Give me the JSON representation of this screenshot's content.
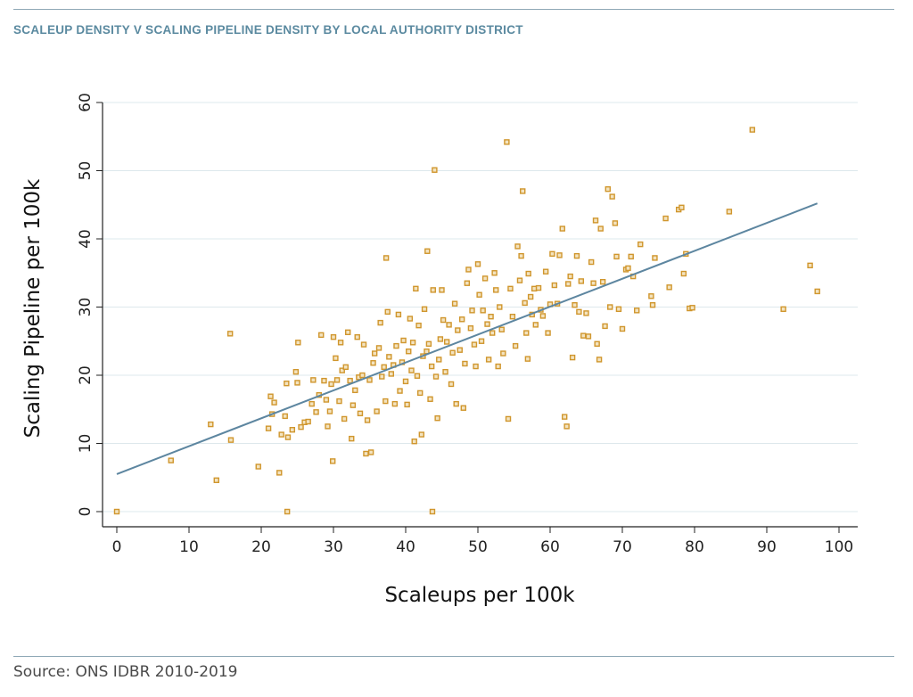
{
  "header": {
    "title": "SCALEUP DENSITY V SCALING PIPELINE DENSITY BY LOCAL AUTHORITY DISTRICT"
  },
  "footer": {
    "source": "Source: ONS IDBR 2010-2019"
  },
  "colors": {
    "rule": "#8fa8b6",
    "heading": "#5b8aa0",
    "points": "#d0962d",
    "fit_line": "#5d86a0",
    "grid": "#dde8ec"
  },
  "chart_data": {
    "type": "scatter",
    "title": "",
    "xlabel": "Scaleups per 100k",
    "ylabel": "Scaling Pipeline per 100k",
    "xlim": [
      0,
      100
    ],
    "ylim": [
      0,
      60
    ],
    "x_ticks": [
      0,
      10,
      20,
      30,
      40,
      50,
      60,
      70,
      80,
      90,
      100
    ],
    "y_ticks": [
      0,
      10,
      20,
      30,
      40,
      50,
      60
    ],
    "grid": "horizontal",
    "fit_line": {
      "x": [
        0,
        97
      ],
      "y": [
        5.5,
        45.2
      ]
    },
    "points": [
      [
        0,
        0
      ],
      [
        7.5,
        7.5
      ],
      [
        13,
        12.8
      ],
      [
        13.8,
        4.6
      ],
      [
        15.7,
        26.1
      ],
      [
        15.8,
        10.5
      ],
      [
        19.6,
        6.6
      ],
      [
        21,
        12.2
      ],
      [
        21.3,
        16.9
      ],
      [
        21.5,
        14.3
      ],
      [
        21.8,
        16
      ],
      [
        22.5,
        5.7
      ],
      [
        22.8,
        11.3
      ],
      [
        23.3,
        14
      ],
      [
        23.5,
        18.8
      ],
      [
        23.6,
        0
      ],
      [
        23.7,
        10.9
      ],
      [
        24.3,
        12
      ],
      [
        24.8,
        20.5
      ],
      [
        25.1,
        24.8
      ],
      [
        25,
        18.9
      ],
      [
        25.5,
        12.4
      ],
      [
        26,
        13.1
      ],
      [
        26.5,
        13.2
      ],
      [
        27,
        15.8
      ],
      [
        27.2,
        19.3
      ],
      [
        27.6,
        14.6
      ],
      [
        28,
        17.1
      ],
      [
        28.3,
        25.9
      ],
      [
        28.7,
        19.2
      ],
      [
        29,
        16.4
      ],
      [
        29.2,
        12.5
      ],
      [
        29.5,
        14.7
      ],
      [
        29.7,
        18.7
      ],
      [
        30,
        25.6
      ],
      [
        29.9,
        7.4
      ],
      [
        30.3,
        22.5
      ],
      [
        30.5,
        19.3
      ],
      [
        30.8,
        16.2
      ],
      [
        31,
        24.8
      ],
      [
        31.2,
        20.7
      ],
      [
        31.5,
        13.6
      ],
      [
        31.7,
        21.2
      ],
      [
        32,
        26.3
      ],
      [
        32.3,
        19.2
      ],
      [
        32.5,
        10.7
      ],
      [
        32.7,
        15.6
      ],
      [
        33,
        17.8
      ],
      [
        33.3,
        25.6
      ],
      [
        33.5,
        19.7
      ],
      [
        33.7,
        14.4
      ],
      [
        34,
        20
      ],
      [
        34.2,
        24.5
      ],
      [
        34.5,
        8.5
      ],
      [
        34.7,
        13.4
      ],
      [
        35,
        19.3
      ],
      [
        35.2,
        8.7
      ],
      [
        35.5,
        21.8
      ],
      [
        35.7,
        23.2
      ],
      [
        36,
        14.7
      ],
      [
        36.3,
        24
      ],
      [
        36.5,
        27.7
      ],
      [
        36.7,
        19.8
      ],
      [
        37,
        21.2
      ],
      [
        37.2,
        16.2
      ],
      [
        37.5,
        29.3
      ],
      [
        37.7,
        22.7
      ],
      [
        37.3,
        37.2
      ],
      [
        38,
        20.2
      ],
      [
        38.3,
        21.5
      ],
      [
        38.5,
        15.8
      ],
      [
        38.7,
        24.3
      ],
      [
        39,
        28.9
      ],
      [
        39.2,
        17.7
      ],
      [
        39.5,
        21.9
      ],
      [
        39.7,
        25.1
      ],
      [
        40,
        19.1
      ],
      [
        40.2,
        15.7
      ],
      [
        40.4,
        23.5
      ],
      [
        40.6,
        28.3
      ],
      [
        40.8,
        20.7
      ],
      [
        41,
        24.8
      ],
      [
        41.2,
        10.3
      ],
      [
        41.4,
        32.7
      ],
      [
        41.6,
        19.9
      ],
      [
        41.8,
        27.3
      ],
      [
        42,
        17.4
      ],
      [
        42.2,
        11.3
      ],
      [
        42.4,
        22.8
      ],
      [
        42.6,
        29.7
      ],
      [
        42.9,
        23.5
      ],
      [
        43,
        38.2
      ],
      [
        43.2,
        24.6
      ],
      [
        43.4,
        16.5
      ],
      [
        43.6,
        21.3
      ],
      [
        43.8,
        32.5
      ],
      [
        43.7,
        0
      ],
      [
        44,
        50.1
      ],
      [
        44.2,
        19.8
      ],
      [
        44.4,
        13.7
      ],
      [
        44.6,
        22.3
      ],
      [
        44.8,
        25.3
      ],
      [
        45,
        32.5
      ],
      [
        45.2,
        28.1
      ],
      [
        45.5,
        20.5
      ],
      [
        45.7,
        24.9
      ],
      [
        46,
        27.4
      ],
      [
        46.3,
        18.7
      ],
      [
        46.5,
        23.3
      ],
      [
        46.8,
        30.5
      ],
      [
        47,
        15.8
      ],
      [
        47.2,
        26.6
      ],
      [
        47.5,
        23.7
      ],
      [
        47.8,
        28.2
      ],
      [
        48,
        15.2
      ],
      [
        48.2,
        21.7
      ],
      [
        48.5,
        33.5
      ],
      [
        48.7,
        35.5
      ],
      [
        49,
        26.9
      ],
      [
        49.2,
        29.5
      ],
      [
        49.5,
        24.5
      ],
      [
        49.7,
        21.3
      ],
      [
        50,
        36.3
      ],
      [
        50.2,
        31.8
      ],
      [
        50.5,
        25
      ],
      [
        50.7,
        29.5
      ],
      [
        51,
        34.2
      ],
      [
        51.3,
        27.5
      ],
      [
        51.5,
        22.3
      ],
      [
        51.8,
        28.6
      ],
      [
        52,
        26.2
      ],
      [
        52.3,
        35
      ],
      [
        52.5,
        32.5
      ],
      [
        52.8,
        21.3
      ],
      [
        53,
        30
      ],
      [
        53.3,
        26.7
      ],
      [
        53.5,
        23.2
      ],
      [
        54,
        54.2
      ],
      [
        54.2,
        13.6
      ],
      [
        54.5,
        32.7
      ],
      [
        54.8,
        28.6
      ],
      [
        55.2,
        24.3
      ],
      [
        55.5,
        38.9
      ],
      [
        55.8,
        33.9
      ],
      [
        56,
        37.5
      ],
      [
        56.2,
        47
      ],
      [
        56.5,
        30.6
      ],
      [
        56.7,
        26.2
      ],
      [
        56.9,
        22.4
      ],
      [
        57,
        34.9
      ],
      [
        57.3,
        31.5
      ],
      [
        57.5,
        28.9
      ],
      [
        57.8,
        32.7
      ],
      [
        58,
        27.4
      ],
      [
        58.4,
        32.8
      ],
      [
        58.7,
        29.6
      ],
      [
        59,
        28.7
      ],
      [
        59.4,
        35.2
      ],
      [
        59.7,
        26.2
      ],
      [
        60,
        30.4
      ],
      [
        60.3,
        37.8
      ],
      [
        60.6,
        33.2
      ],
      [
        61,
        30.5
      ],
      [
        61.3,
        37.6
      ],
      [
        61.7,
        41.5
      ],
      [
        62,
        13.9
      ],
      [
        62.3,
        12.5
      ],
      [
        62.5,
        33.4
      ],
      [
        62.8,
        34.5
      ],
      [
        63.1,
        22.6
      ],
      [
        63.4,
        30.3
      ],
      [
        63.7,
        37.5
      ],
      [
        64,
        29.3
      ],
      [
        64.3,
        33.8
      ],
      [
        64.6,
        25.8
      ],
      [
        65,
        29.1
      ],
      [
        65.3,
        25.7
      ],
      [
        65.7,
        36.6
      ],
      [
        66,
        33.5
      ],
      [
        66.3,
        42.7
      ],
      [
        66.5,
        24.6
      ],
      [
        66.8,
        22.3
      ],
      [
        67,
        41.5
      ],
      [
        67.3,
        33.7
      ],
      [
        67.6,
        27.2
      ],
      [
        68,
        47.3
      ],
      [
        68.3,
        30
      ],
      [
        68.6,
        46.2
      ],
      [
        69,
        42.3
      ],
      [
        69.2,
        37.4
      ],
      [
        69.5,
        29.7
      ],
      [
        70,
        26.8
      ],
      [
        70.5,
        35.5
      ],
      [
        70.8,
        35.7
      ],
      [
        71.2,
        37.4
      ],
      [
        71.5,
        34.5
      ],
      [
        72,
        29.5
      ],
      [
        72.5,
        39.2
      ],
      [
        74,
        31.6
      ],
      [
        74.2,
        30.3
      ],
      [
        74.5,
        37.2
      ],
      [
        76,
        43
      ],
      [
        76.5,
        32.9
      ],
      [
        77.8,
        44.3
      ],
      [
        78.2,
        44.6
      ],
      [
        78.5,
        34.9
      ],
      [
        78.8,
        37.8
      ],
      [
        79.3,
        29.8
      ],
      [
        79.7,
        29.9
      ],
      [
        84.8,
        44
      ],
      [
        88,
        56
      ],
      [
        92.3,
        29.7
      ],
      [
        96,
        36.1
      ],
      [
        97,
        32.3
      ]
    ]
  }
}
